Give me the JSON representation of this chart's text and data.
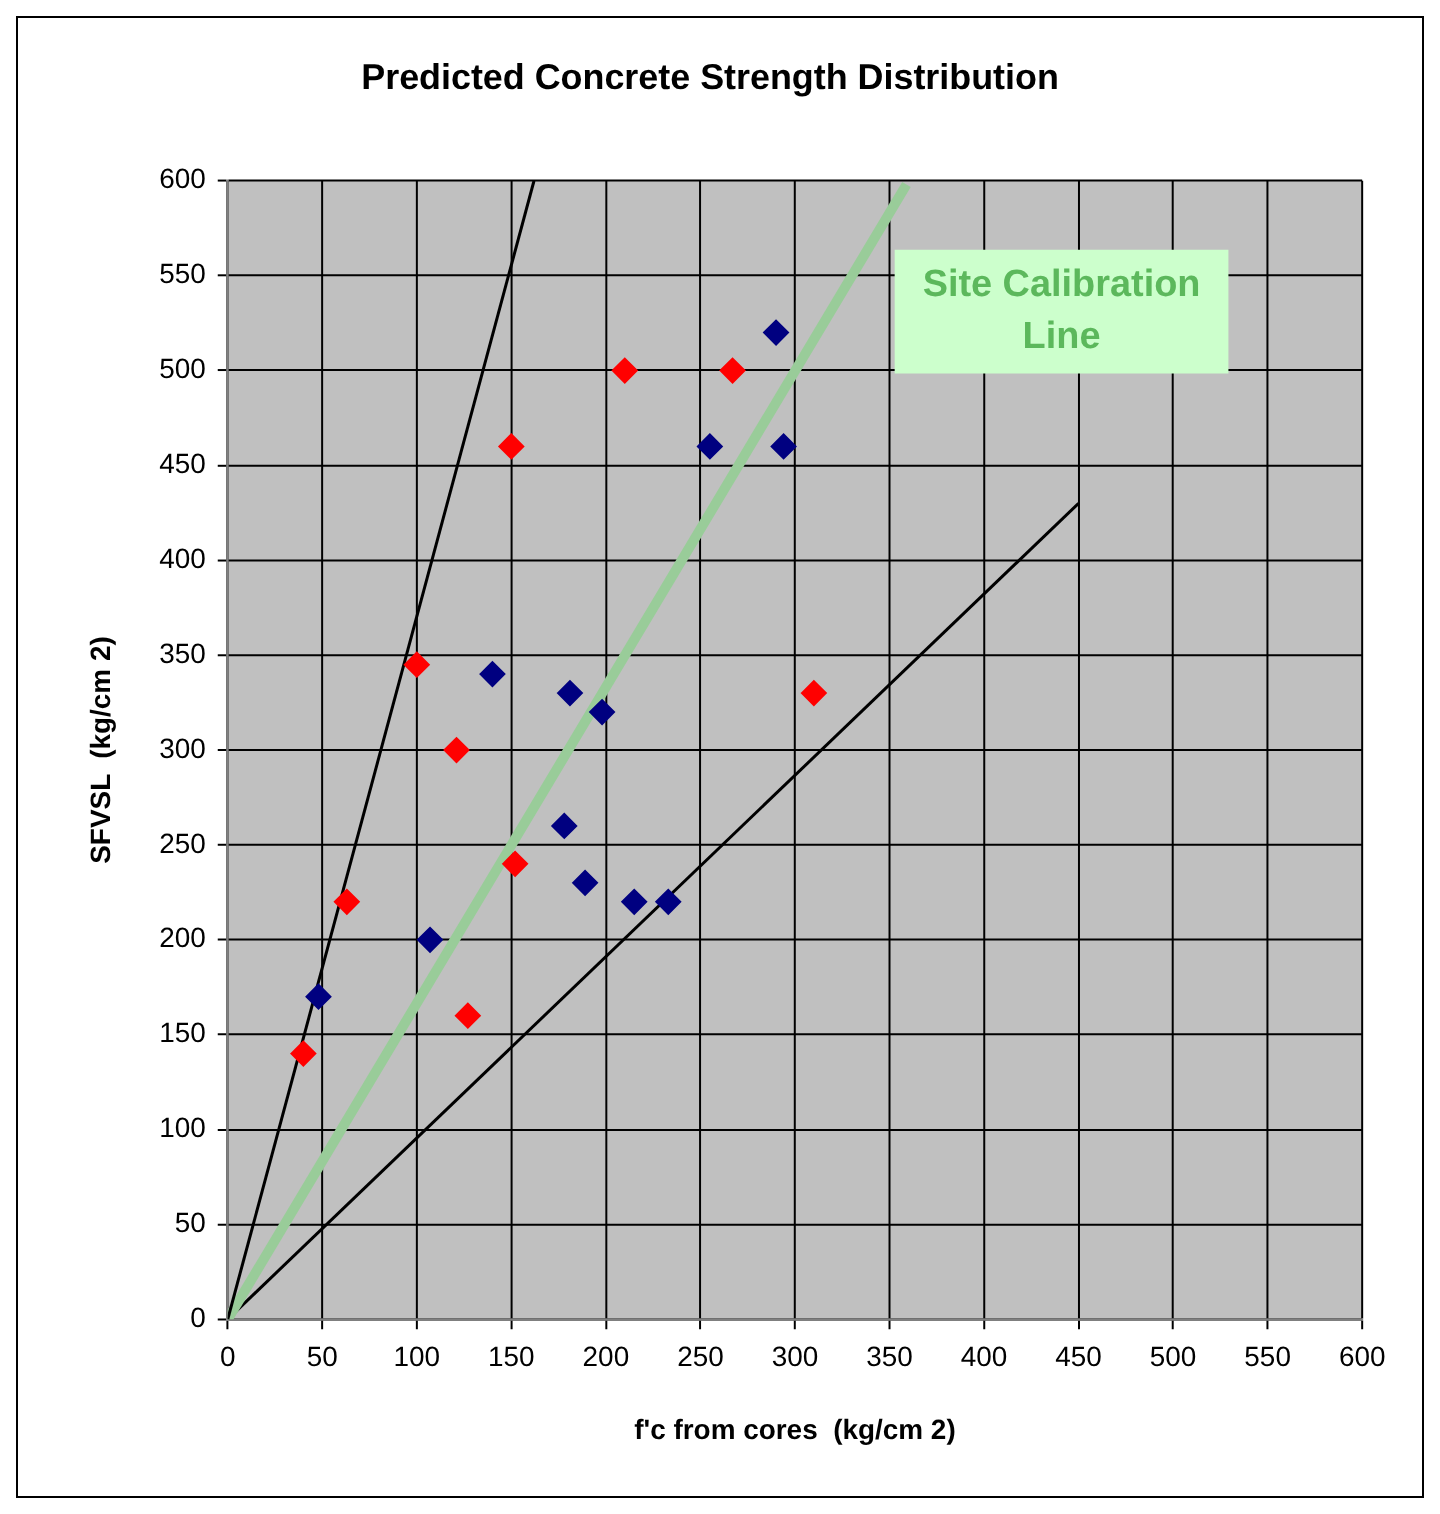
{
  "chart_data": {
    "type": "scatter",
    "title": "Predicted Concrete Strength Distribution",
    "xlabel": "f'c from cores  (kg/cm 2)",
    "ylabel": "SFVSL  (kg/cm 2)",
    "annotations": [
      "Site Calibration Line"
    ],
    "series": [
      {
        "color": "#ff0000",
        "x": [
          40,
          63,
          100,
          121,
          150,
          127,
          152,
          210,
          267,
          310
        ],
        "values": [
          140,
          220,
          345,
          300,
          460,
          160,
          240,
          500,
          500,
          330
        ]
      },
      {
        "color": "#000080",
        "x": [
          48,
          107,
          140,
          181,
          198,
          178,
          189,
          215,
          233,
          255,
          290,
          294
        ],
        "values": [
          170,
          200,
          340,
          330,
          320,
          260,
          230,
          220,
          220,
          460,
          520,
          460
        ]
      },
      {
        "type": "line",
        "marker": "none",
        "color": "#000000",
        "x": [
          0,
          162
        ],
        "values": [
          0,
          600
        ]
      },
      {
        "type": "line",
        "marker": "none",
        "color": "#99cc99",
        "x": [
          0,
          359
        ],
        "values": [
          0,
          598
        ]
      },
      {
        "type": "line",
        "marker": "none",
        "color": "#000000",
        "x": [
          0,
          450
        ],
        "values": [
          0,
          430
        ]
      }
    ],
    "xlim": [
      0,
      600
    ],
    "xticks": [
      0,
      50,
      100,
      150,
      200,
      250,
      300,
      350,
      400,
      450,
      500,
      550,
      600
    ],
    "ylim": [
      0,
      600
    ],
    "yticks": [
      0,
      50,
      100,
      150,
      200,
      250,
      300,
      350,
      400,
      450,
      500,
      550,
      600
    ],
    "grid": true,
    "legend": false,
    "marker": "diamond",
    "line_style": "solid"
  }
}
